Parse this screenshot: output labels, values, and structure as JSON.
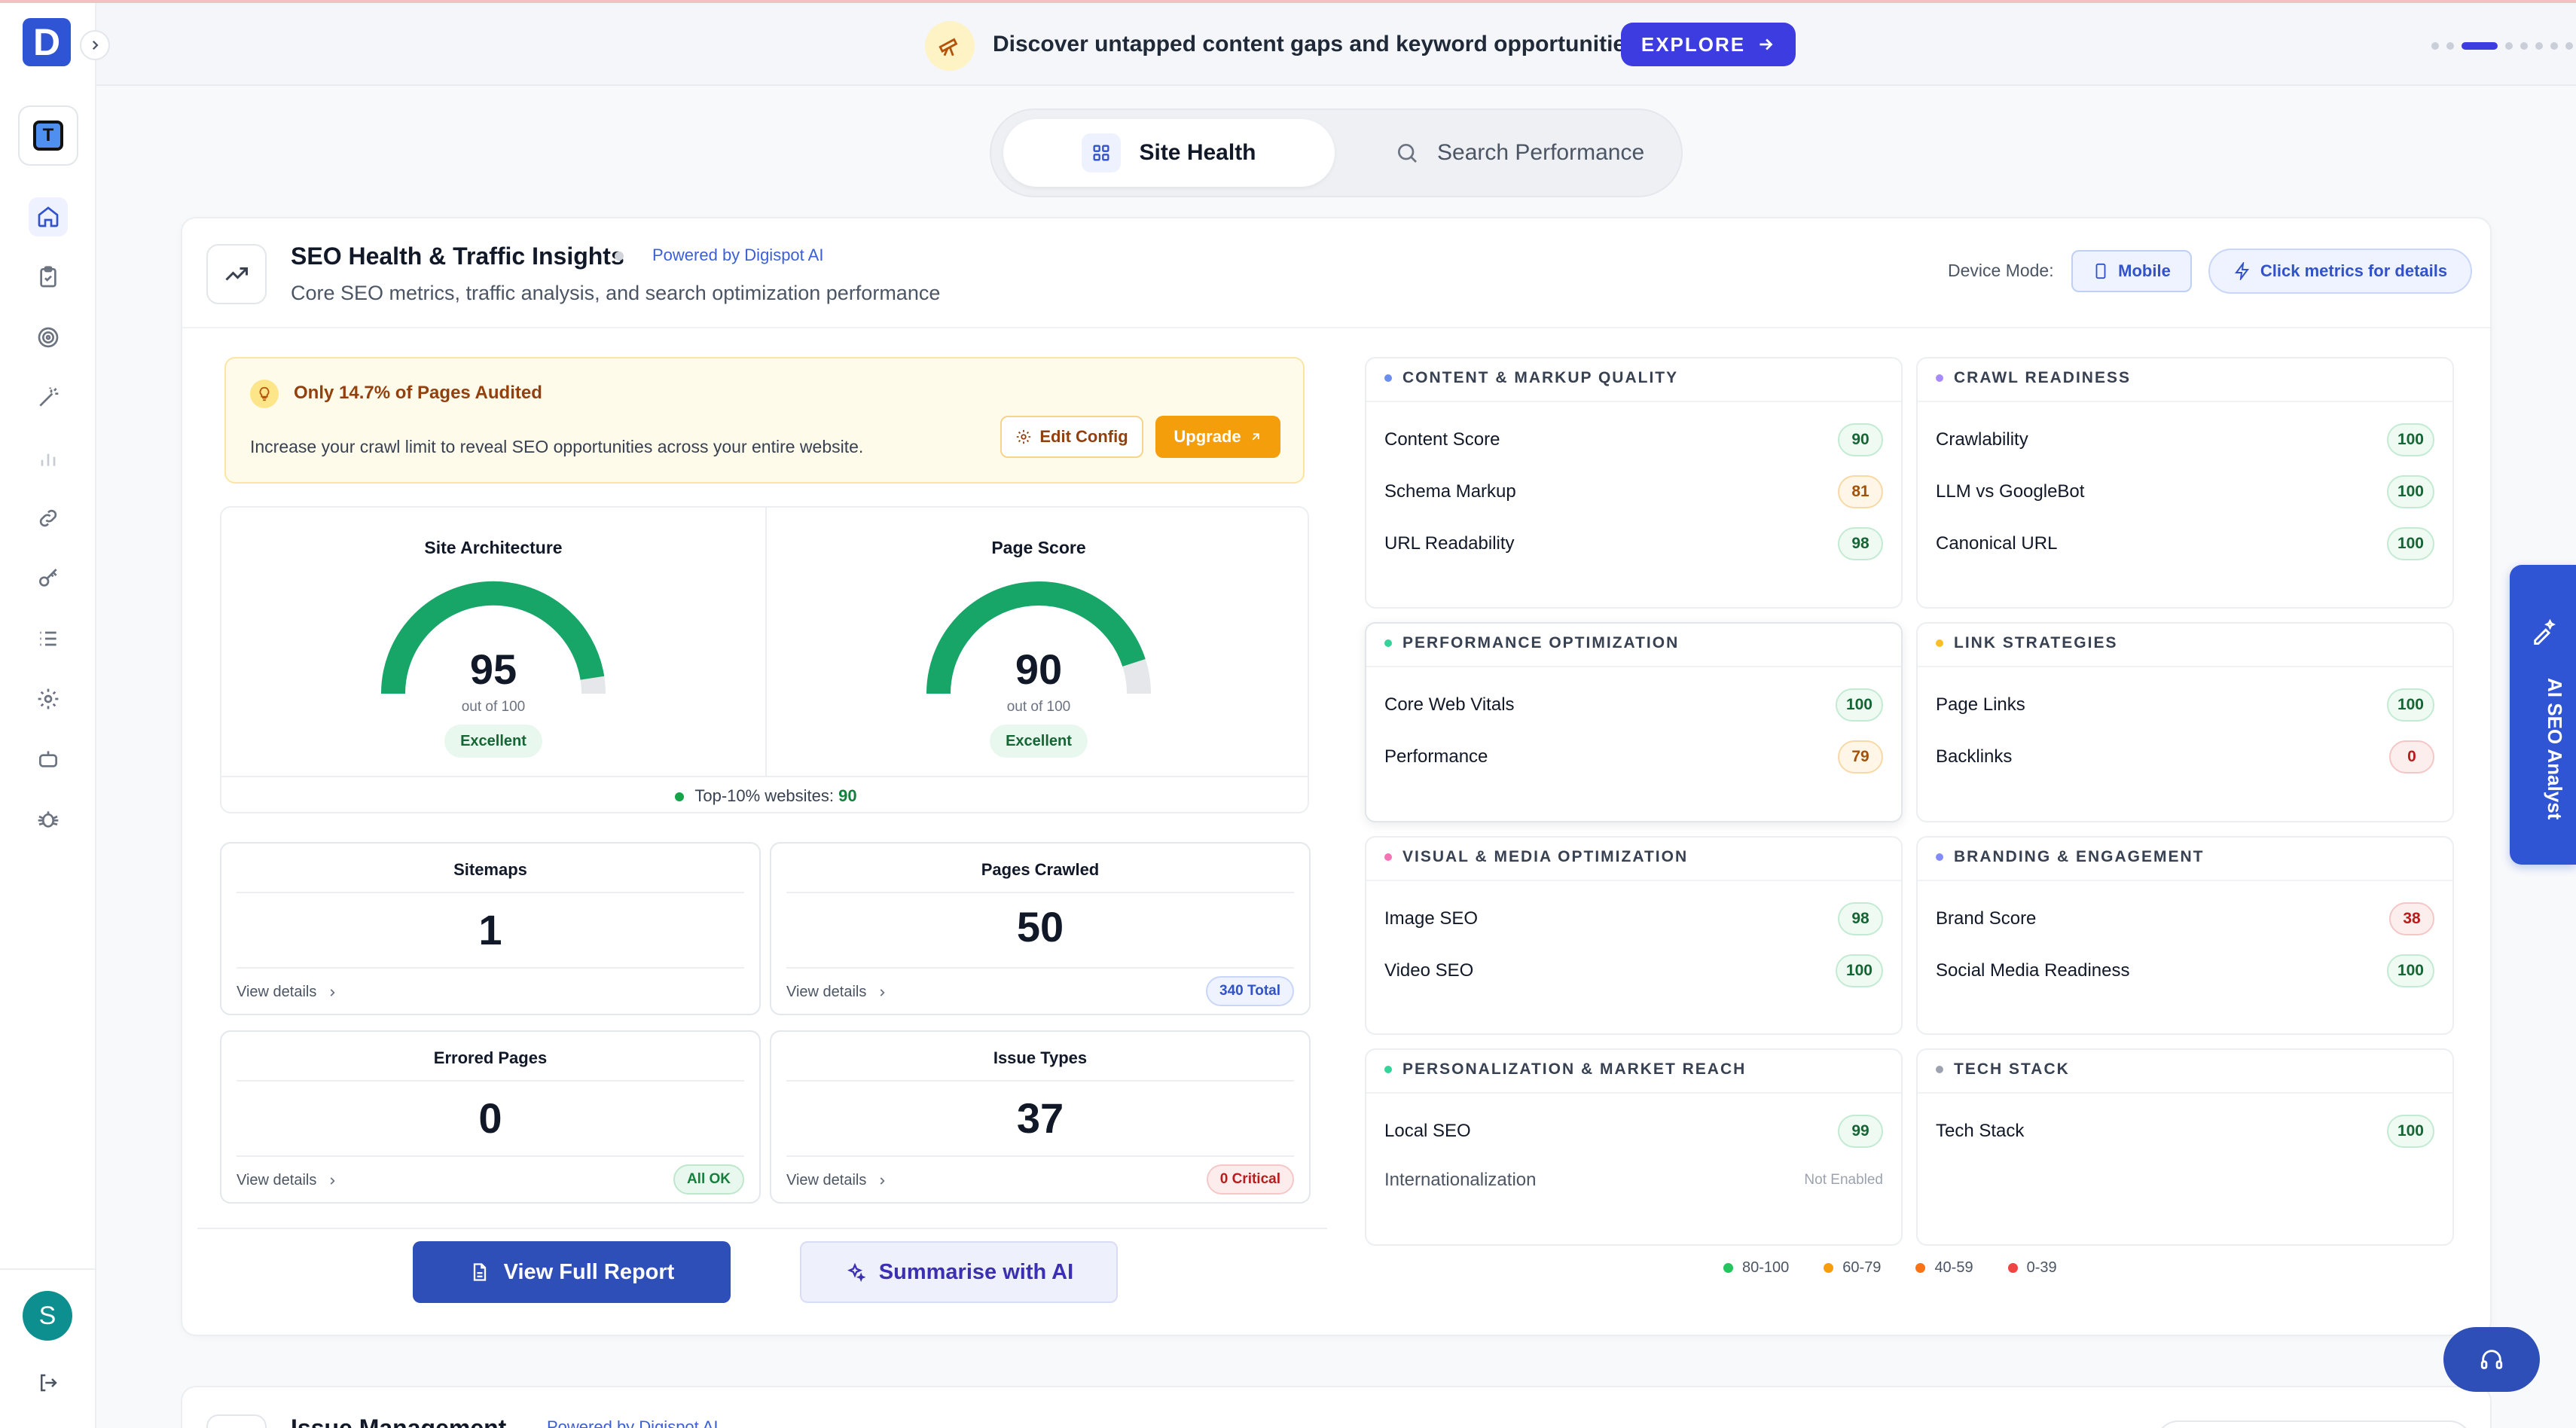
{
  "sidebar": {
    "logo_letter": "D",
    "workspace_letter": "T",
    "avatar_letter": "S",
    "nav_icons": [
      "home-icon",
      "clipboard-icon",
      "target-icon",
      "magic-wand-icon",
      "bar-chart-icon",
      "link-icon",
      "key-icon",
      "list-icon",
      "gear-icon",
      "robot-icon",
      "bug-icon"
    ]
  },
  "banner": {
    "text": "Discover untapped content gaps and keyword opportunities",
    "button_label": "EXPLORE",
    "slides": 9,
    "active_slide": 2
  },
  "tabs": [
    {
      "label": "Site Health",
      "active": true
    },
    {
      "label": "Search Performance",
      "active": false
    }
  ],
  "card": {
    "title": "SEO Health & Traffic Insights",
    "powered_by": "Powered by Digispot AI",
    "subtitle": "Core SEO metrics, traffic analysis, and search optimization performance",
    "device_label": "Device Mode:",
    "device_value": "Mobile",
    "metrics_hint": "Click metrics for details"
  },
  "alert": {
    "title": "Only 14.7% of Pages Audited",
    "text": "Increase your crawl limit to reveal SEO opportunities across your entire website.",
    "edit_label": "Edit Config",
    "upgrade_label": "Upgrade"
  },
  "gauges": [
    {
      "title": "Site Architecture",
      "value": 95,
      "max": 100,
      "out_of": "out of 100",
      "badge": "Excellent"
    },
    {
      "title": "Page Score",
      "value": 90,
      "max": 100,
      "out_of": "out of 100",
      "badge": "Excellent"
    }
  ],
  "top10": {
    "label": "Top-10% websites:",
    "value": "90"
  },
  "stats": {
    "sitemaps": {
      "title": "Sitemaps",
      "value": "1",
      "link": "View details",
      "badge": ""
    },
    "pages_crawled": {
      "title": "Pages Crawled",
      "value": "50",
      "link": "View details",
      "badge": "340 Total"
    },
    "errored_pages": {
      "title": "Errored Pages",
      "value": "0",
      "link": "View details",
      "badge": "All OK"
    },
    "issue_types": {
      "title": "Issue Types",
      "value": "37",
      "link": "View details",
      "badge": "0 Critical"
    }
  },
  "actions": {
    "full_report": "View Full Report",
    "summarise": "Summarise with AI"
  },
  "panels": {
    "content": {
      "title": "CONTENT & MARKUP QUALITY",
      "dot": "#6b8ff0",
      "rows": [
        {
          "label": "Content Score",
          "score": "90"
        },
        {
          "label": "Schema Markup",
          "score": "81"
        },
        {
          "label": "URL Readability",
          "score": "98"
        }
      ]
    },
    "crawl": {
      "title": "CRAWL READINESS",
      "dot": "#a78bfa",
      "rows": [
        {
          "label": "Crawlability",
          "score": "100"
        },
        {
          "label": "LLM vs GoogleBot",
          "score": "100"
        },
        {
          "label": "Canonical URL",
          "score": "100"
        }
      ]
    },
    "performance": {
      "title": "PERFORMANCE OPTIMIZATION",
      "dot": "#34d399",
      "rows": [
        {
          "label": "Core Web Vitals",
          "score": "100"
        },
        {
          "label": "Performance",
          "score": "79"
        }
      ]
    },
    "links": {
      "title": "LINK STRATEGIES",
      "dot": "#fbbf24",
      "rows": [
        {
          "label": "Page Links",
          "score": "100"
        },
        {
          "label": "Backlinks",
          "score": "0"
        }
      ]
    },
    "visual": {
      "title": "VISUAL & MEDIA OPTIMIZATION",
      "dot": "#f472b6",
      "rows": [
        {
          "label": "Image SEO",
          "score": "98"
        },
        {
          "label": "Video SEO",
          "score": "100"
        }
      ]
    },
    "branding": {
      "title": "BRANDING & ENGAGEMENT",
      "dot": "#818cf8",
      "rows": [
        {
          "label": "Brand Score",
          "score": "38"
        },
        {
          "label": "Social Media Readiness",
          "score": "100"
        }
      ]
    },
    "personalization": {
      "title": "PERSONALIZATION & MARKET REACH",
      "dot": "#34d399",
      "rows": [
        {
          "label": "Local SEO",
          "score": "99"
        },
        {
          "label": "Internationalization",
          "score": "Not Enabled"
        }
      ]
    },
    "tech": {
      "title": "TECH STACK",
      "dot": "#9ca3af",
      "rows": [
        {
          "label": "Tech Stack",
          "score": "100"
        }
      ]
    }
  },
  "legend": [
    {
      "label": "80-100",
      "color": "#22c55e"
    },
    {
      "label": "60-79",
      "color": "#f59e0b"
    },
    {
      "label": "40-59",
      "color": "#f97316"
    },
    {
      "label": "0-39",
      "color": "#ef4444"
    }
  ],
  "ai_tab": {
    "label": "AI SEO Analyst"
  },
  "next_card": {
    "title": "Issue Management",
    "powered_by": "Powered by Digispot AI"
  },
  "colors": {
    "primary": "#2f55d4",
    "accent": "#3d3ce0",
    "gauge": "#17a568",
    "warning": "#f59e0b"
  }
}
